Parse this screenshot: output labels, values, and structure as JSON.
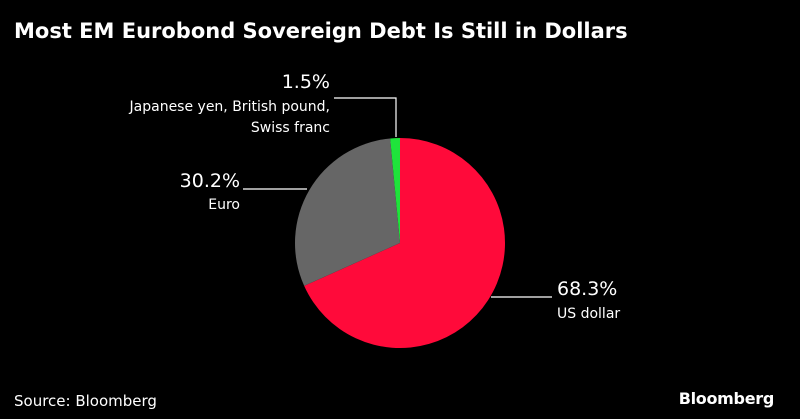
{
  "chart_data": {
    "type": "pie",
    "title": "Most EM Eurobond Sovereign Debt Is Still in Dollars",
    "slices": [
      {
        "label": "US dollar",
        "value": 68.3,
        "value_label": "68.3%",
        "color": "#ff0a3a"
      },
      {
        "label": "Euro",
        "value": 30.2,
        "value_label": "30.2%",
        "color": "#666666"
      },
      {
        "label": "Japanese yen, British pound, Swiss franc",
        "label_lines": [
          "Japanese yen, British pound,",
          "Swiss franc"
        ],
        "value": 1.5,
        "value_label": "1.5%",
        "color": "#1fe33b"
      }
    ]
  },
  "footer": {
    "source": "Source: Bloomberg",
    "brand": "Bloomberg"
  }
}
